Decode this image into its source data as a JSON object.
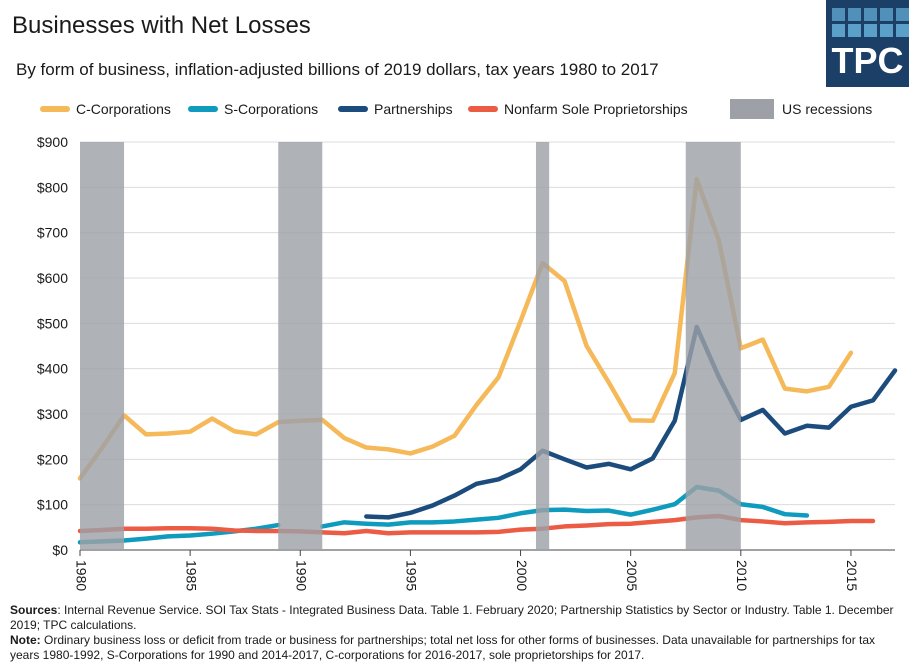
{
  "title": "Businesses with Net Losses",
  "subtitle": "By form of business, inflation-adjusted billions of 2019 dollars, tax years 1980 to 2017",
  "logo": {
    "text": "TPC",
    "color": "#1b3f66",
    "square_color": "#5aa0c8"
  },
  "legend": [
    {
      "label": "C-Corporations",
      "color": "#f5b95a",
      "kind": "line"
    },
    {
      "label": "S-Corporations",
      "color": "#0f9bbd",
      "kind": "line"
    },
    {
      "label": "Partnerships",
      "color": "#1c4b7d",
      "kind": "line"
    },
    {
      "label": "Nonfarm Sole Proprietorships",
      "color": "#ec5c45",
      "kind": "line"
    },
    {
      "label": "US recessions",
      "color": "#9da1a7",
      "kind": "rect"
    }
  ],
  "notes": {
    "sources_label": "Sources",
    "sources_text": ": Internal Revenue Service. SOI Tax Stats - Integrated Business Data. Table 1. February 2020; Partnership Statistics by Sector or Industry. Table 1. December 2019; TPC calculations.",
    "note_label": "Note:",
    "note_text": " Ordinary business loss or deficit from trade or business for partnerships; total net loss for other forms of businesses. Data unavailable for partnerships for tax years 1980-1992, S-Corporations for 1990 and 2014-2017, C-corporations for 2016-2017, sole proprietorships for 2017."
  },
  "chart_data": {
    "type": "line",
    "title": "Businesses with Net Losses",
    "xlabel": "",
    "ylabel": "",
    "xlim": [
      1980,
      2017
    ],
    "ylim": [
      0,
      900
    ],
    "yticks": [
      0,
      100,
      200,
      300,
      400,
      500,
      600,
      700,
      800,
      900
    ],
    "ytick_labels": [
      "$0",
      "$100",
      "$200",
      "$300",
      "$400",
      "$500",
      "$600",
      "$700",
      "$800",
      "$900"
    ],
    "xticks": [
      1980,
      1985,
      1990,
      1995,
      2000,
      2005,
      2010,
      2015
    ],
    "xtick_labels": [
      "1980",
      "1985",
      "1990",
      "1995",
      "2000",
      "2005",
      "2010",
      "2015"
    ],
    "grid": true,
    "recessions": [
      [
        1980,
        1982
      ],
      [
        1989,
        1991
      ],
      [
        2000.7,
        2001.3
      ],
      [
        2007.5,
        2010
      ]
    ],
    "series": [
      {
        "name": "C-Corporations",
        "color": "#f5b95a",
        "x": [
          1980,
          1981,
          1982,
          1983,
          1984,
          1985,
          1986,
          1987,
          1988,
          1989,
          1990,
          1991,
          1992,
          1993,
          1994,
          1995,
          1996,
          1997,
          1998,
          1999,
          2000,
          2001,
          2002,
          2003,
          2004,
          2005,
          2006,
          2007,
          2008,
          2009,
          2010,
          2011,
          2012,
          2013,
          2014,
          2015
        ],
        "values": [
          158,
          225,
          297,
          255,
          257,
          261,
          290,
          262,
          255,
          282,
          285,
          287,
          247,
          226,
          222,
          213,
          228,
          252,
          320,
          381,
          505,
          633,
          593,
          450,
          370,
          286,
          285,
          390,
          818,
          683,
          445,
          464,
          356,
          350,
          360,
          435
        ]
      },
      {
        "name": "S-Corporations",
        "color": "#0f9bbd",
        "x": [
          1980,
          1981,
          1982,
          1983,
          1984,
          1985,
          1986,
          1987,
          1988,
          1989,
          null,
          1991,
          1992,
          1993,
          1994,
          1995,
          1996,
          1997,
          1998,
          1999,
          2000,
          2001,
          2002,
          2003,
          2004,
          2005,
          2006,
          2007,
          2008,
          2009,
          2010,
          2011,
          2012,
          2013
        ],
        "values": [
          17,
          19,
          21,
          25,
          30,
          32,
          36,
          41,
          47,
          55,
          null,
          52,
          61,
          58,
          56,
          61,
          61,
          63,
          67,
          71,
          81,
          88,
          89,
          86,
          87,
          78,
          89,
          101,
          139,
          131,
          101,
          95,
          79,
          76
        ]
      },
      {
        "name": "Partnerships",
        "color": "#1c4b7d",
        "x": [
          1993,
          1994,
          1995,
          1996,
          1997,
          1998,
          1999,
          2000,
          2001,
          2002,
          2003,
          2004,
          2005,
          2006,
          2007,
          2008,
          2009,
          2010,
          2011,
          2012,
          2013,
          2014,
          2015,
          2016,
          2017
        ],
        "values": [
          74,
          72,
          82,
          98,
          120,
          146,
          156,
          178,
          219,
          200,
          182,
          190,
          178,
          202,
          285,
          492,
          382,
          287,
          309,
          257,
          274,
          270,
          316,
          330,
          396
        ]
      },
      {
        "name": "Nonfarm Sole Proprietorships",
        "color": "#ec5c45",
        "x": [
          1980,
          1981,
          1982,
          1983,
          1984,
          1985,
          1986,
          1987,
          1988,
          1989,
          1990,
          1991,
          1992,
          1993,
          1994,
          1995,
          1996,
          1997,
          1998,
          1999,
          2000,
          2001,
          2002,
          2003,
          2004,
          2005,
          2006,
          2007,
          2008,
          2009,
          2010,
          2011,
          2012,
          2013,
          2014,
          2015,
          2016
        ],
        "values": [
          42,
          44,
          47,
          47,
          48,
          48,
          47,
          43,
          42,
          42,
          41,
          39,
          37,
          42,
          37,
          39,
          39,
          39,
          39,
          40,
          45,
          47,
          52,
          54,
          57,
          58,
          62,
          66,
          72,
          75,
          66,
          63,
          59,
          61,
          62,
          64,
          64
        ]
      }
    ]
  }
}
